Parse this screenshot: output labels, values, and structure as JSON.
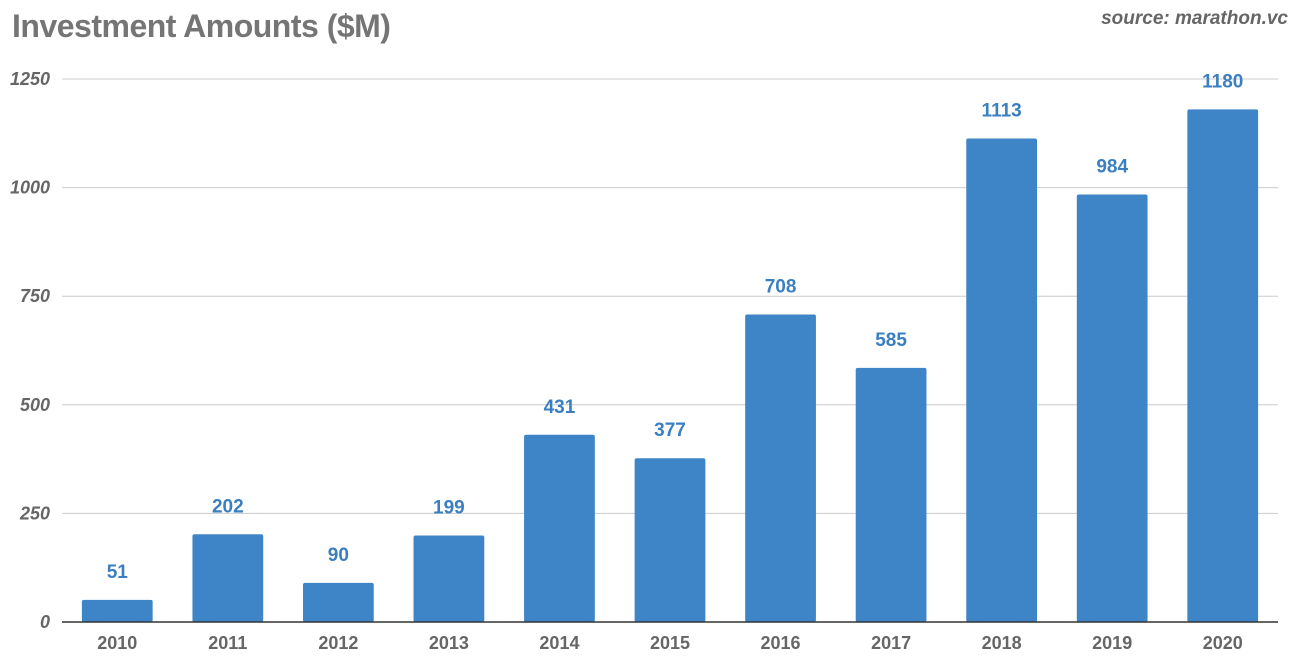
{
  "header": {
    "title": "Investment Amounts ($M)",
    "source": "source: marathon.vc"
  },
  "colors": {
    "bar": "#3d85c6",
    "label": "#3a7fc1",
    "grid": "#cccccc",
    "axis": "#333333",
    "text": "#666666"
  },
  "chart_data": {
    "type": "bar",
    "title": "Investment Amounts ($M)",
    "xlabel": "",
    "ylabel": "",
    "categories": [
      "2010",
      "2011",
      "2012",
      "2013",
      "2014",
      "2015",
      "2016",
      "2017",
      "2018",
      "2019",
      "2020"
    ],
    "values": [
      51,
      202,
      90,
      199,
      431,
      377,
      708,
      585,
      1113,
      984,
      1180
    ],
    "ylim": [
      0,
      1250
    ],
    "yticks": [
      0,
      250,
      500,
      750,
      1000,
      1250
    ],
    "grid": true,
    "legend": "none",
    "data_labels": true
  }
}
